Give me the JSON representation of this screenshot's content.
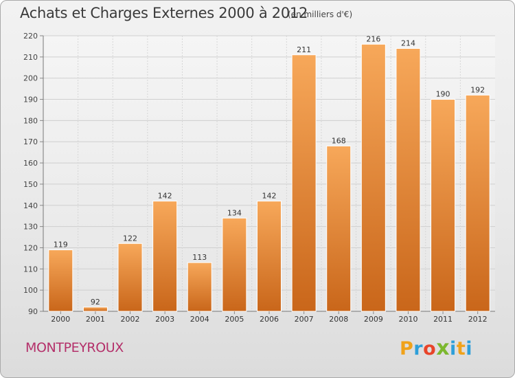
{
  "header": {
    "title": "Achats et Charges Externes 2000 à 2012",
    "subtitle": "(en milliers d'€)"
  },
  "footer": {
    "commune": "MONTPEYROUX",
    "logo_letters": [
      "P",
      "r",
      "o",
      "x",
      "i",
      "t",
      "i"
    ],
    "logo_colors": [
      "#f0a21a",
      "#2e9fd9",
      "#e8442a",
      "#7cb82f",
      "#2e9fd9",
      "#f0a21a",
      "#2e9fd9"
    ]
  },
  "chart_data": {
    "type": "bar",
    "categories": [
      "2000",
      "2001",
      "2002",
      "2003",
      "2004",
      "2005",
      "2006",
      "2007",
      "2008",
      "2009",
      "2010",
      "2011",
      "2012"
    ],
    "values": [
      119,
      92,
      122,
      142,
      113,
      134,
      142,
      211,
      168,
      216,
      214,
      190,
      192
    ],
    "ylim": [
      90,
      220
    ],
    "yticks": [
      90,
      100,
      110,
      120,
      130,
      140,
      150,
      160,
      170,
      180,
      190,
      200,
      210,
      220
    ],
    "grid": true,
    "data_labels": true,
    "bar_color_top": "#f7a85a",
    "bar_color_bottom": "#c9661a"
  }
}
